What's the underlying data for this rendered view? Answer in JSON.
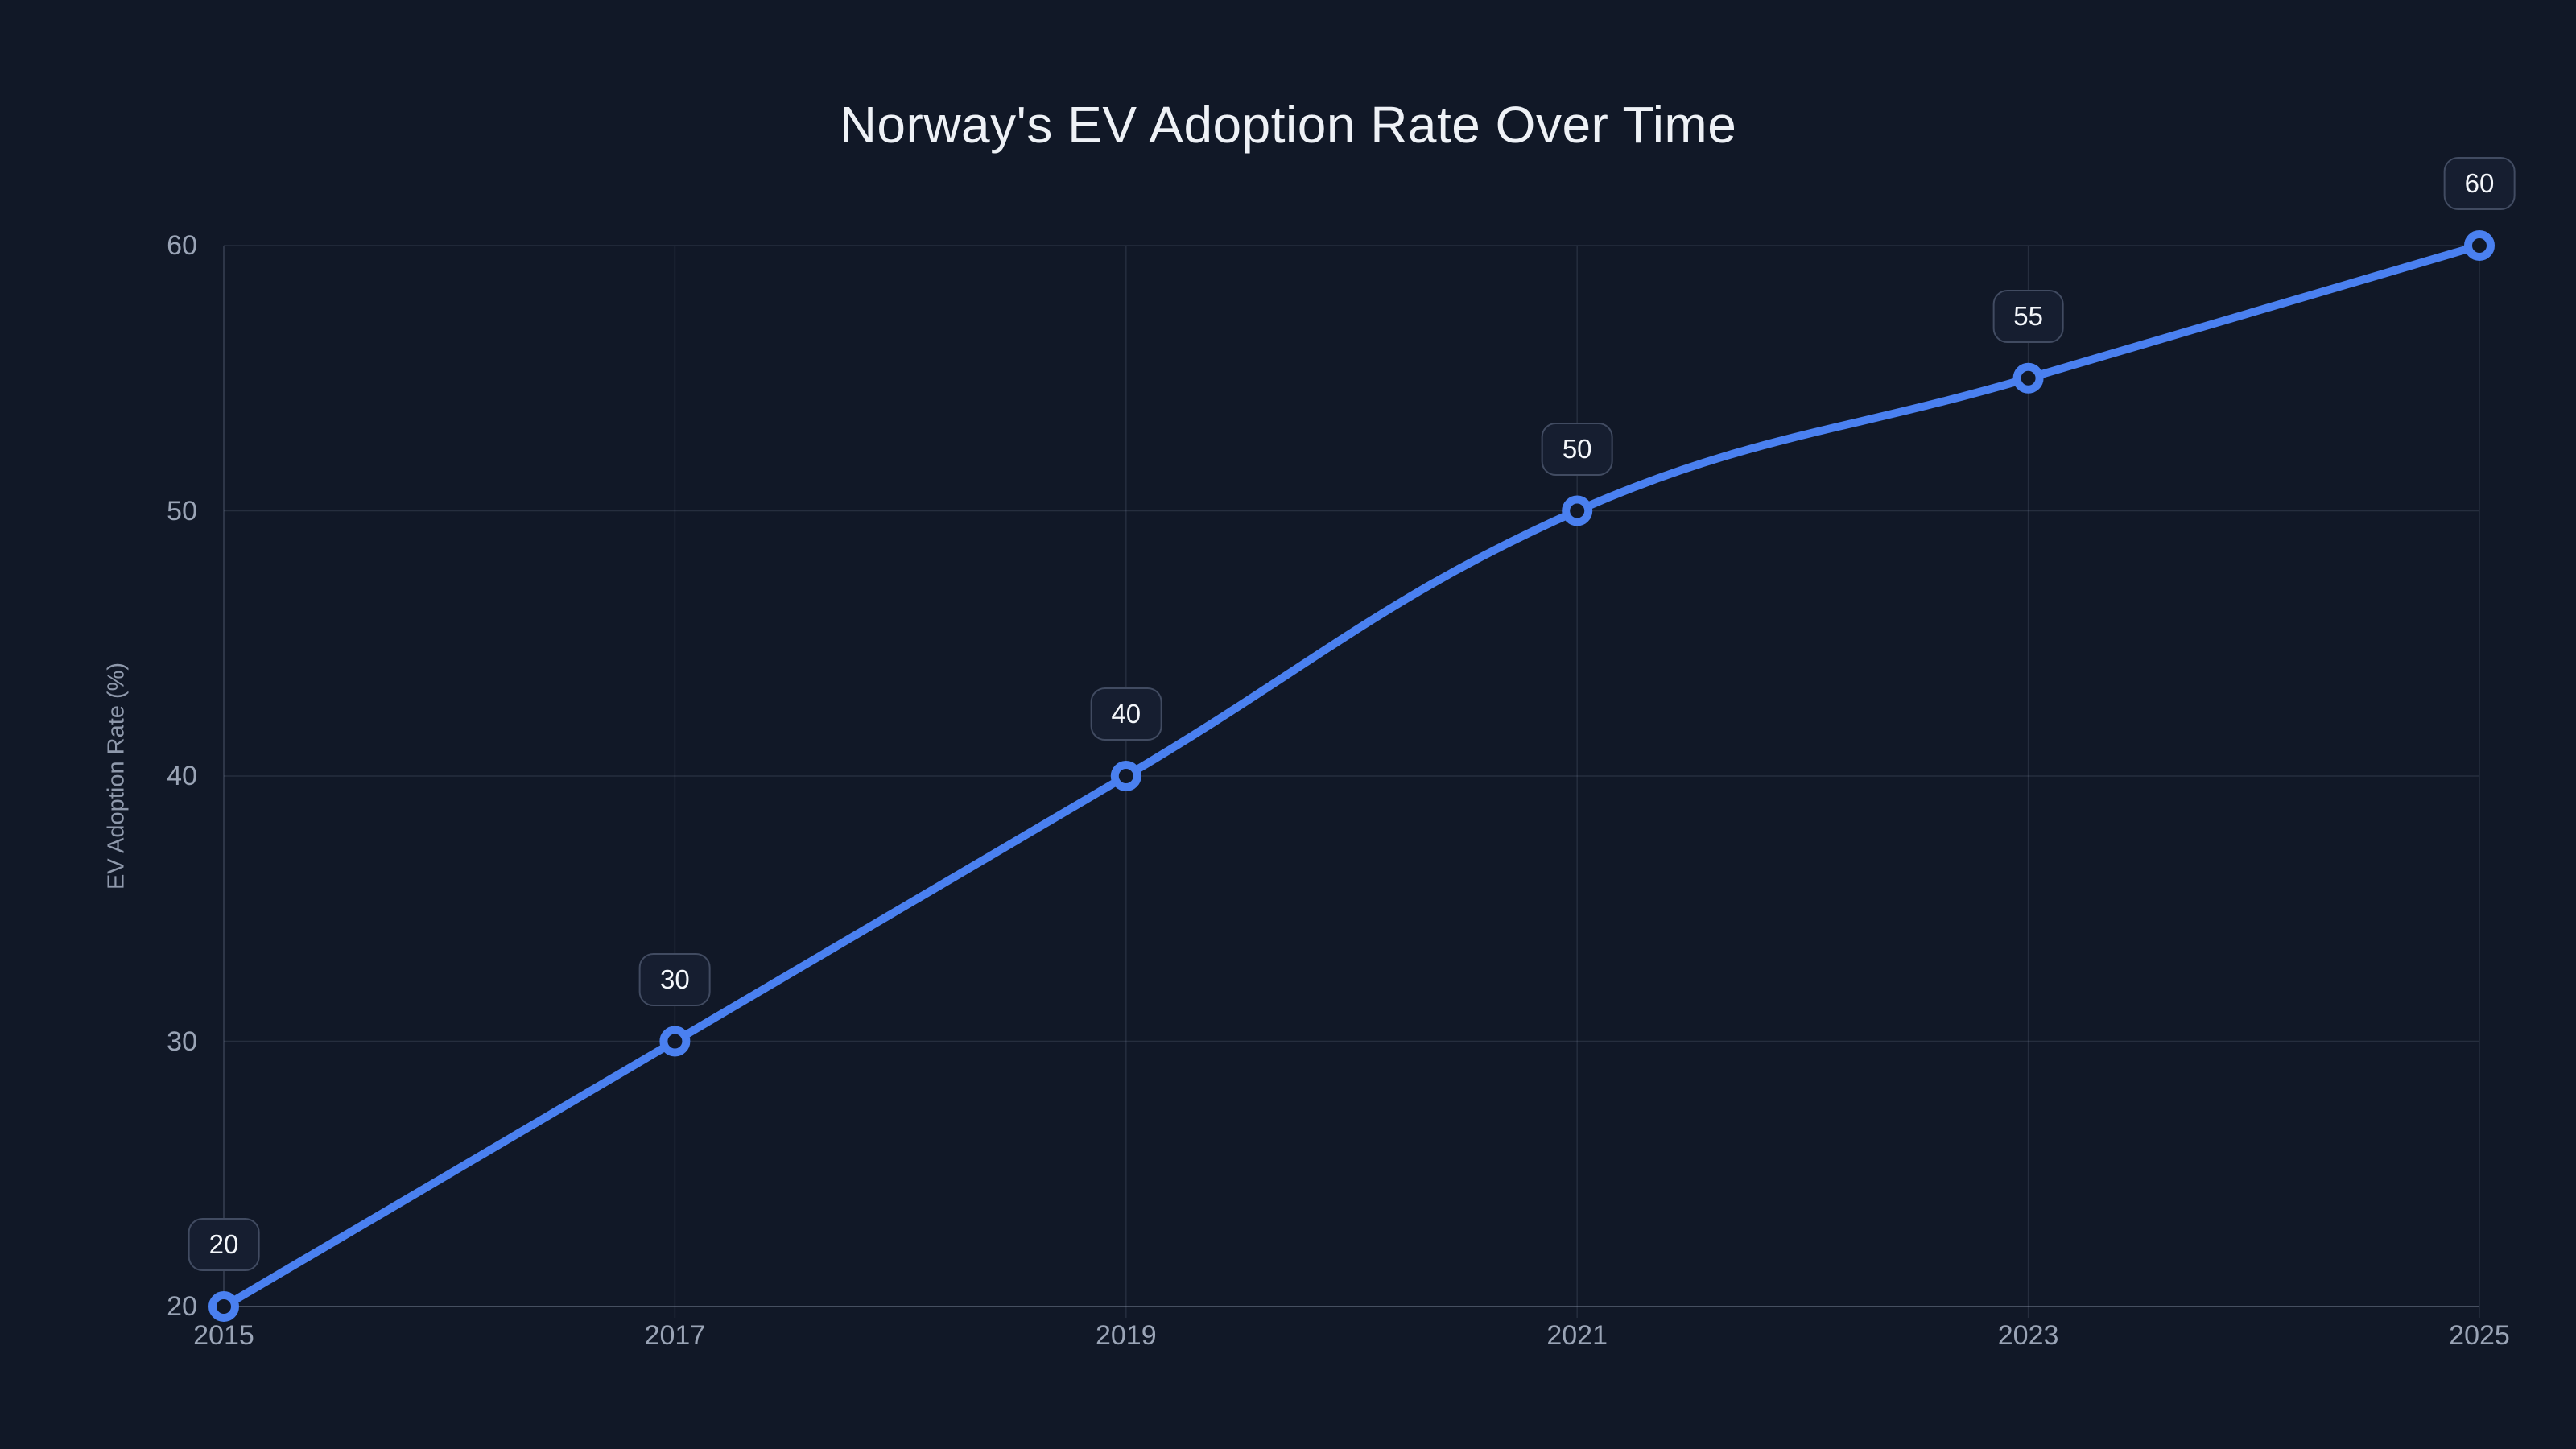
{
  "page": {
    "background": "#111827"
  },
  "chart_data": {
    "type": "line",
    "title": "Norway's EV Adoption Rate Over Time",
    "ylabel": "EV Adoption Rate (%)",
    "xlabel": "",
    "x": [
      2015,
      2017,
      2019,
      2021,
      2023,
      2025
    ],
    "values": [
      20,
      30,
      40,
      50,
      55,
      60
    ],
    "point_labels": [
      "20",
      "30",
      "40",
      "50",
      "55",
      "60"
    ],
    "x_ticks": [
      2015,
      2017,
      2019,
      2021,
      2023,
      2025
    ],
    "y_ticks": [
      20,
      30,
      40,
      50,
      60
    ],
    "xlim": [
      2015,
      2025
    ],
    "ylim": [
      20,
      60
    ],
    "grid": true,
    "legend": "none",
    "line_smoothing": "tension-0.4",
    "colors": {
      "background": "#111827",
      "line": "#4a80f0",
      "marker_fill": "#111827",
      "grid": "rgba(148,163,184,0.16)",
      "axis_line": "rgba(148,163,184,0.32)",
      "tick_text": "#9aa4b6",
      "axis_title_text": "#8f99ac",
      "title_text": "#eef1f6",
      "label_box_bg": "#161e30",
      "label_box_border": "#414b61",
      "label_box_text": "#f4f7fb"
    }
  }
}
